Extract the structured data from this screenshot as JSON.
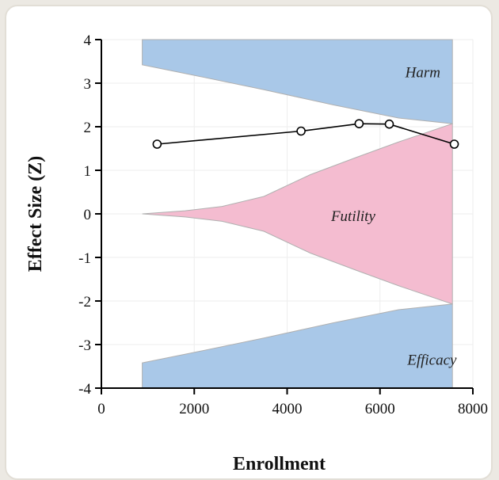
{
  "chart_data": {
    "type": "line",
    "xlabel": "Enrollment",
    "ylabel": "Effect Size (Z)",
    "xlim": [
      0,
      8000
    ],
    "ylim": [
      -4,
      4
    ],
    "xticks": [
      0,
      2000,
      4000,
      6000,
      8000
    ],
    "yticks": [
      4,
      3,
      2,
      1,
      0,
      -1,
      -2,
      -3,
      -4
    ],
    "grid": true,
    "series": [
      {
        "x": [
          1200,
          4300,
          5550,
          6200,
          7600
        ],
        "values": [
          1.6,
          1.9,
          2.07,
          2.06,
          1.6
        ]
      }
    ],
    "regions": [
      {
        "label": "Harm",
        "color": "#a9c8e8",
        "x": [
          880,
          2000,
          3500,
          5000,
          6400,
          7560
        ],
        "lower": [
          3.42,
          3.18,
          2.85,
          2.5,
          2.2,
          2.07
        ],
        "upper": [
          4,
          4,
          4,
          4,
          4,
          4
        ]
      },
      {
        "label": "Futility",
        "color": "#f4bcd0",
        "x": [
          880,
          1800,
          2600,
          3500,
          4500,
          5500,
          6400,
          7560
        ],
        "upper": [
          0.0,
          0.07,
          0.17,
          0.4,
          0.9,
          1.3,
          1.65,
          2.07
        ],
        "lower": [
          0.0,
          -0.07,
          -0.17,
          -0.4,
          -0.9,
          -1.3,
          -1.65,
          -2.07
        ]
      },
      {
        "label": "Efficacy",
        "color": "#a9c8e8",
        "x": [
          880,
          2000,
          3500,
          5000,
          6400,
          7560
        ],
        "upper": [
          -3.42,
          -3.18,
          -2.85,
          -2.5,
          -2.2,
          -2.07
        ],
        "lower": [
          -4,
          -4,
          -4,
          -4,
          -4,
          -4
        ]
      }
    ]
  }
}
